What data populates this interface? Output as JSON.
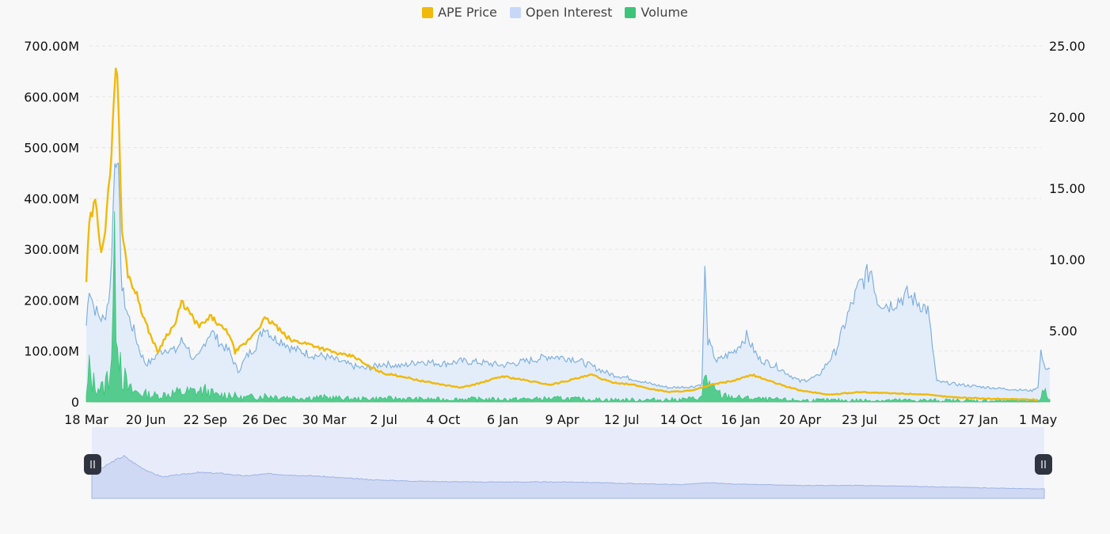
{
  "chart_data": {
    "type": "line",
    "title": "",
    "legend": {
      "placement": "top-center",
      "items": [
        {
          "name": "APE Price",
          "color": "#f0b90b"
        },
        {
          "name": "Open Interest",
          "color": "#c7d7f7"
        },
        {
          "name": "Volume",
          "color": "#3cc57a"
        }
      ]
    },
    "x_tick_labels": [
      "18 Mar",
      "20 Jun",
      "22 Sep",
      "26 Dec",
      "30 Mar",
      "2 Jul",
      "4 Oct",
      "6 Jan",
      "9 Apr",
      "12 Jul",
      "14 Oct",
      "16 Jan",
      "20 Apr",
      "23 Jul",
      "25 Oct",
      "27 Jan",
      "1 May"
    ],
    "y_left": {
      "ticks": [
        0,
        100,
        200,
        300,
        400,
        500,
        600,
        700
      ],
      "tick_labels": [
        "0",
        "100.00M",
        "200.00M",
        "300.00M",
        "400.00M",
        "500.00M",
        "600.00M",
        "700.00M"
      ],
      "range": [
        0,
        700
      ]
    },
    "y_right": {
      "ticks": [
        5,
        10,
        15,
        20,
        25
      ],
      "tick_labels": [
        "5.00",
        "10.00",
        "15.00",
        "20.00",
        "25.00"
      ],
      "range": [
        0,
        25
      ]
    },
    "grid": "horizontal",
    "series": [
      {
        "name": "APE Price",
        "axis": "right",
        "color": "#f0b90b",
        "points": [
          [
            0,
            8.5
          ],
          [
            0.05,
            12.5
          ],
          [
            0.15,
            14
          ],
          [
            0.25,
            10.8
          ],
          [
            0.32,
            12
          ],
          [
            0.4,
            16
          ],
          [
            0.47,
            22
          ],
          [
            0.52,
            23.7
          ],
          [
            0.55,
            19
          ],
          [
            0.6,
            12
          ],
          [
            0.7,
            9
          ],
          [
            0.85,
            7.5
          ],
          [
            1.0,
            5.5
          ],
          [
            1.1,
            4.5
          ],
          [
            1.2,
            3.5
          ],
          [
            1.35,
            4.7
          ],
          [
            1.5,
            5.5
          ],
          [
            1.6,
            7
          ],
          [
            1.7,
            6.5
          ],
          [
            1.8,
            5.8
          ],
          [
            1.9,
            5.3
          ],
          [
            2.0,
            5.6
          ],
          [
            2.1,
            6
          ],
          [
            2.25,
            5.3
          ],
          [
            2.4,
            4.8
          ],
          [
            2.5,
            3.5
          ],
          [
            2.7,
            4.2
          ],
          [
            2.85,
            5
          ],
          [
            3.0,
            5.8
          ],
          [
            3.15,
            5.5
          ],
          [
            3.3,
            4.8
          ],
          [
            3.45,
            4.3
          ],
          [
            3.6,
            4.2
          ],
          [
            3.8,
            4
          ],
          [
            4.0,
            3.7
          ],
          [
            4.3,
            3.3
          ],
          [
            4.5,
            3.2
          ],
          [
            4.7,
            2.6
          ],
          [
            5.0,
            2
          ],
          [
            5.3,
            1.8
          ],
          [
            5.6,
            1.5
          ],
          [
            6.0,
            1.2
          ],
          [
            6.3,
            1.0
          ],
          [
            6.6,
            1.3
          ],
          [
            7.0,
            1.8
          ],
          [
            7.4,
            1.5
          ],
          [
            7.8,
            1.2
          ],
          [
            8.2,
            1.6
          ],
          [
            8.5,
            1.9
          ],
          [
            8.8,
            1.4
          ],
          [
            9.2,
            1.2
          ],
          [
            9.5,
            0.9
          ],
          [
            9.8,
            0.7
          ],
          [
            10.2,
            0.8
          ],
          [
            10.5,
            1.2
          ],
          [
            10.9,
            1.5
          ],
          [
            11.2,
            1.9
          ],
          [
            11.6,
            1.3
          ],
          [
            12.0,
            0.8
          ],
          [
            12.5,
            0.5
          ],
          [
            13.0,
            0.7
          ],
          [
            13.5,
            0.6
          ],
          [
            14.0,
            0.55
          ],
          [
            14.5,
            0.35
          ],
          [
            15.0,
            0.25
          ],
          [
            15.5,
            0.2
          ],
          [
            16.0,
            0.15
          ]
        ]
      },
      {
        "name": "Open Interest",
        "axis": "left",
        "color": "#7fb0e0",
        "fill": "#e3edfa",
        "points": [
          [
            0,
            150
          ],
          [
            0.05,
            230
          ],
          [
            0.12,
            190
          ],
          [
            0.2,
            170
          ],
          [
            0.3,
            160
          ],
          [
            0.4,
            220
          ],
          [
            0.48,
            470
          ],
          [
            0.52,
            510
          ],
          [
            0.56,
            360
          ],
          [
            0.6,
            220
          ],
          [
            0.7,
            170
          ],
          [
            0.8,
            140
          ],
          [
            0.9,
            100
          ],
          [
            1.0,
            75
          ],
          [
            1.1,
            80
          ],
          [
            1.2,
            95
          ],
          [
            1.35,
            105
          ],
          [
            1.5,
            100
          ],
          [
            1.6,
            120
          ],
          [
            1.7,
            110
          ],
          [
            1.8,
            80
          ],
          [
            1.9,
            90
          ],
          [
            2.0,
            120
          ],
          [
            2.1,
            140
          ],
          [
            2.25,
            115
          ],
          [
            2.4,
            100
          ],
          [
            2.55,
            60
          ],
          [
            2.7,
            90
          ],
          [
            2.85,
            110
          ],
          [
            3.0,
            150
          ],
          [
            3.15,
            125
          ],
          [
            3.3,
            120
          ],
          [
            3.45,
            105
          ],
          [
            3.6,
            100
          ],
          [
            3.8,
            92
          ],
          [
            4.0,
            90
          ],
          [
            4.2,
            82
          ],
          [
            4.5,
            70
          ],
          [
            4.7,
            65
          ],
          [
            5.0,
            75
          ],
          [
            5.3,
            70
          ],
          [
            5.6,
            80
          ],
          [
            6.0,
            75
          ],
          [
            6.3,
            80
          ],
          [
            6.6,
            78
          ],
          [
            7.0,
            72
          ],
          [
            7.4,
            80
          ],
          [
            7.8,
            90
          ],
          [
            8.2,
            85
          ],
          [
            8.5,
            70
          ],
          [
            8.8,
            55
          ],
          [
            9.2,
            45
          ],
          [
            9.5,
            35
          ],
          [
            9.8,
            28
          ],
          [
            10.2,
            30
          ],
          [
            10.35,
            35
          ],
          [
            10.4,
            258
          ],
          [
            10.45,
            120
          ],
          [
            10.6,
            80
          ],
          [
            10.9,
            100
          ],
          [
            11.1,
            130
          ],
          [
            11.3,
            85
          ],
          [
            11.6,
            70
          ],
          [
            12.0,
            40
          ],
          [
            12.3,
            50
          ],
          [
            12.6,
            100
          ],
          [
            12.8,
            170
          ],
          [
            13.0,
            230
          ],
          [
            13.2,
            260
          ],
          [
            13.3,
            200
          ],
          [
            13.5,
            190
          ],
          [
            13.8,
            210
          ],
          [
            14.0,
            195
          ],
          [
            14.15,
            180
          ],
          [
            14.3,
            40
          ],
          [
            14.6,
            35
          ],
          [
            15.0,
            30
          ],
          [
            15.5,
            25
          ],
          [
            15.9,
            22
          ],
          [
            16.0,
            30
          ],
          [
            16.05,
            100
          ],
          [
            16.1,
            70
          ],
          [
            16.2,
            65
          ]
        ]
      },
      {
        "name": "Volume",
        "axis": "left",
        "color": "#3cc57a",
        "points": [
          [
            0,
            10
          ],
          [
            0.05,
            60
          ],
          [
            0.1,
            40
          ],
          [
            0.2,
            30
          ],
          [
            0.3,
            25
          ],
          [
            0.4,
            70
          ],
          [
            0.45,
            170
          ],
          [
            0.5,
            280
          ],
          [
            0.55,
            140
          ],
          [
            0.6,
            60
          ],
          [
            0.7,
            25
          ],
          [
            0.8,
            20
          ],
          [
            1.0,
            15
          ],
          [
            1.2,
            12
          ],
          [
            1.5,
            18
          ],
          [
            1.8,
            20
          ],
          [
            2.0,
            22
          ],
          [
            2.2,
            12
          ],
          [
            2.4,
            15
          ],
          [
            2.6,
            8
          ],
          [
            3.0,
            12
          ],
          [
            3.3,
            10
          ],
          [
            3.6,
            8
          ],
          [
            4.0,
            9
          ],
          [
            4.5,
            6
          ],
          [
            5.0,
            7
          ],
          [
            5.5,
            6
          ],
          [
            6.0,
            5
          ],
          [
            6.5,
            6
          ],
          [
            7.0,
            5
          ],
          [
            7.5,
            6
          ],
          [
            8.0,
            7
          ],
          [
            8.5,
            5
          ],
          [
            9.0,
            4
          ],
          [
            9.5,
            4
          ],
          [
            10.0,
            5
          ],
          [
            10.35,
            8
          ],
          [
            10.4,
            60
          ],
          [
            10.5,
            25
          ],
          [
            10.7,
            12
          ],
          [
            11.0,
            8
          ],
          [
            11.5,
            5
          ],
          [
            12.0,
            3
          ],
          [
            13.0,
            3
          ],
          [
            14.0,
            3
          ],
          [
            15.0,
            2
          ],
          [
            16.0,
            3
          ],
          [
            16.1,
            20
          ],
          [
            16.2,
            5
          ]
        ]
      }
    ],
    "navigator": {
      "points": [
        [
          0,
          0.6
        ],
        [
          0.2,
          0.72
        ],
        [
          0.35,
          0.85
        ],
        [
          0.45,
          0.92
        ],
        [
          0.55,
          0.98
        ],
        [
          0.65,
          0.88
        ],
        [
          0.8,
          0.75
        ],
        [
          1.0,
          0.6
        ],
        [
          1.2,
          0.5
        ],
        [
          1.5,
          0.55
        ],
        [
          1.8,
          0.6
        ],
        [
          2.2,
          0.58
        ],
        [
          2.6,
          0.52
        ],
        [
          3.0,
          0.57
        ],
        [
          3.4,
          0.54
        ],
        [
          3.8,
          0.52
        ],
        [
          4.2,
          0.48
        ],
        [
          4.8,
          0.43
        ],
        [
          5.5,
          0.4
        ],
        [
          6.5,
          0.38
        ],
        [
          7.5,
          0.38
        ],
        [
          8.2,
          0.38
        ],
        [
          9.0,
          0.35
        ],
        [
          10.0,
          0.32
        ],
        [
          10.5,
          0.36
        ],
        [
          11.0,
          0.33
        ],
        [
          12.0,
          0.3
        ],
        [
          13.0,
          0.3
        ],
        [
          14.0,
          0.28
        ],
        [
          15.0,
          0.25
        ],
        [
          16.0,
          0.22
        ],
        [
          16.2,
          0.22
        ]
      ]
    }
  }
}
